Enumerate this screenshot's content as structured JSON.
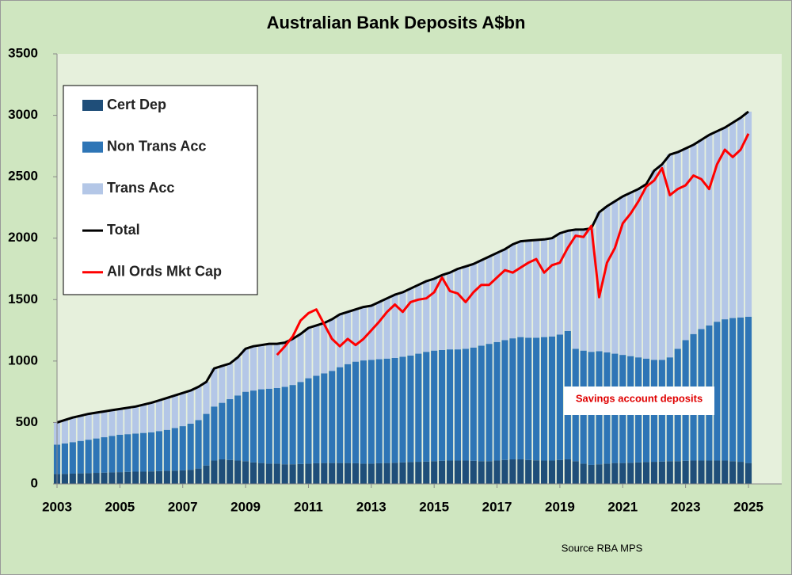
{
  "chart_data": {
    "type": "bar",
    "stacked": true,
    "title": "Australian Bank Deposits  A$bn",
    "annotation": "Savings account deposits",
    "source": "Source RBA   MPS",
    "legend": "upper left",
    "grid": false,
    "xlim": [
      2002.9,
      2025.6
    ],
    "xticks": [
      2003,
      2005,
      2007,
      2009,
      2011,
      2013,
      2015,
      2017,
      2019,
      2021,
      2023,
      2025
    ],
    "ylim": [
      0,
      3500
    ],
    "yticks": [
      0,
      500,
      1000,
      1500,
      2000,
      2500,
      3000,
      3500
    ],
    "x": [
      2003,
      2003.25,
      2003.5,
      2003.75,
      2004,
      2004.25,
      2004.5,
      2004.75,
      2005,
      2005.25,
      2005.5,
      2005.75,
      2006,
      2006.25,
      2006.5,
      2006.75,
      2007,
      2007.25,
      2007.5,
      2007.75,
      2008,
      2008.25,
      2008.5,
      2008.75,
      2009,
      2009.25,
      2009.5,
      2009.75,
      2010,
      2010.25,
      2010.5,
      2010.75,
      2011,
      2011.25,
      2011.5,
      2011.75,
      2012,
      2012.25,
      2012.5,
      2012.75,
      2013,
      2013.25,
      2013.5,
      2013.75,
      2014,
      2014.25,
      2014.5,
      2014.75,
      2015,
      2015.25,
      2015.5,
      2015.75,
      2016,
      2016.25,
      2016.5,
      2016.75,
      2017,
      2017.25,
      2017.5,
      2017.75,
      2018,
      2018.25,
      2018.5,
      2018.75,
      2019,
      2019.25,
      2019.5,
      2019.75,
      2020,
      2020.25,
      2020.5,
      2020.75,
      2021,
      2021.25,
      2021.5,
      2021.75,
      2022,
      2022.25,
      2022.5,
      2022.75,
      2023,
      2023.25,
      2023.5,
      2023.75,
      2024,
      2024.25,
      2024.5,
      2024.75,
      2025
    ],
    "series": [
      {
        "name": "Cert Dep",
        "color": "#1f4e79",
        "values": [
          80,
          82,
          84,
          86,
          88,
          90,
          92,
          94,
          96,
          98,
          100,
          100,
          102,
          104,
          106,
          108,
          110,
          115,
          125,
          150,
          190,
          200,
          195,
          190,
          185,
          175,
          170,
          165,
          165,
          160,
          160,
          162,
          165,
          168,
          170,
          170,
          170,
          170,
          168,
          165,
          165,
          168,
          170,
          172,
          175,
          178,
          180,
          182,
          185,
          188,
          190,
          190,
          190,
          188,
          185,
          185,
          190,
          195,
          200,
          200,
          195,
          192,
          190,
          190,
          195,
          200,
          185,
          165,
          155,
          160,
          165,
          170,
          170,
          172,
          175,
          178,
          180,
          182,
          185,
          185,
          188,
          190,
          190,
          190,
          190,
          190,
          185,
          180,
          170
        ]
      },
      {
        "name": "Non Trans Acc",
        "color": "#2e75b6",
        "values": [
          240,
          248,
          256,
          264,
          272,
          280,
          288,
          296,
          304,
          307,
          310,
          315,
          318,
          326,
          334,
          347,
          360,
          375,
          395,
          420,
          440,
          460,
          495,
          530,
          565,
          585,
          600,
          610,
          615,
          630,
          645,
          668,
          695,
          712,
          730,
          750,
          780,
          805,
          827,
          840,
          845,
          847,
          850,
          853,
          860,
          867,
          880,
          893,
          900,
          902,
          905,
          905,
          910,
          922,
          940,
          955,
          965,
          975,
          985,
          995,
          995,
          998,
          1005,
          1010,
          1020,
          1045,
          915,
          920,
          920,
          920,
          905,
          890,
          880,
          868,
          855,
          842,
          830,
          828,
          845,
          915,
          982,
          1030,
          1070,
          1100,
          1130,
          1150,
          1165,
          1175,
          1190
        ]
      },
      {
        "name": "Trans Acc",
        "color": "#b4c7e7",
        "values": [
          180,
          190,
          200,
          205,
          210,
          210,
          210,
          210,
          210,
          215,
          220,
          230,
          240,
          250,
          260,
          265,
          270,
          270,
          270,
          260,
          310,
          300,
          290,
          310,
          350,
          360,
          360,
          365,
          360,
          360,
          375,
          390,
          410,
          410,
          410,
          420,
          430,
          425,
          425,
          435,
          440,
          465,
          490,
          515,
          525,
          545,
          560,
          575,
          585,
          610,
          625,
          655,
          670,
          680,
          695,
          710,
          725,
          740,
          765,
          780,
          790,
          795,
          795,
          800,
          825,
          815,
          970,
          985,
          1005,
          1130,
          1190,
          1240,
          1290,
          1330,
          1370,
          1420,
          1540,
          1590,
          1650,
          1600,
          1560,
          1540,
          1540,
          1550,
          1550,
          1560,
          1590,
          1625,
          1670
        ]
      },
      {
        "name": "Total",
        "type": "line",
        "color": "#000000",
        "values": [
          500,
          520,
          540,
          555,
          570,
          580,
          590,
          600,
          610,
          620,
          630,
          645,
          660,
          680,
          700,
          720,
          740,
          760,
          790,
          830,
          940,
          960,
          980,
          1030,
          1100,
          1120,
          1130,
          1140,
          1140,
          1150,
          1180,
          1220,
          1270,
          1290,
          1310,
          1340,
          1380,
          1400,
          1420,
          1440,
          1450,
          1480,
          1510,
          1540,
          1560,
          1590,
          1620,
          1650,
          1670,
          1700,
          1720,
          1750,
          1770,
          1790,
          1820,
          1850,
          1880,
          1910,
          1950,
          1975,
          1980,
          1985,
          1990,
          2000,
          2040,
          2060,
          2070,
          2070,
          2080,
          2210,
          2260,
          2300,
          2340,
          2370,
          2400,
          2440,
          2550,
          2600,
          2680,
          2700,
          2730,
          2760,
          2800,
          2840,
          2870,
          2900,
          2940,
          2980,
          3030
        ]
      },
      {
        "name": "All Ords Mkt Cap",
        "type": "line",
        "color": "#ff0000",
        "values": [
          null,
          null,
          null,
          null,
          null,
          null,
          null,
          null,
          null,
          null,
          null,
          null,
          null,
          null,
          null,
          null,
          null,
          null,
          null,
          null,
          null,
          null,
          null,
          null,
          null,
          null,
          null,
          null,
          1050,
          1120,
          1200,
          1330,
          1390,
          1420,
          1300,
          1180,
          1120,
          1180,
          1130,
          1180,
          1250,
          1320,
          1400,
          1460,
          1400,
          1480,
          1500,
          1510,
          1560,
          1680,
          1570,
          1550,
          1480,
          1560,
          1620,
          1620,
          1680,
          1740,
          1720,
          1760,
          1800,
          1830,
          1720,
          1780,
          1800,
          1920,
          2020,
          2010,
          2100,
          1520,
          1800,
          1920,
          2120,
          2200,
          2300,
          2420,
          2470,
          2570,
          2350,
          2400,
          2430,
          2510,
          2480,
          2400,
          2600,
          2720,
          2660,
          2720,
          2850
        ]
      }
    ]
  }
}
